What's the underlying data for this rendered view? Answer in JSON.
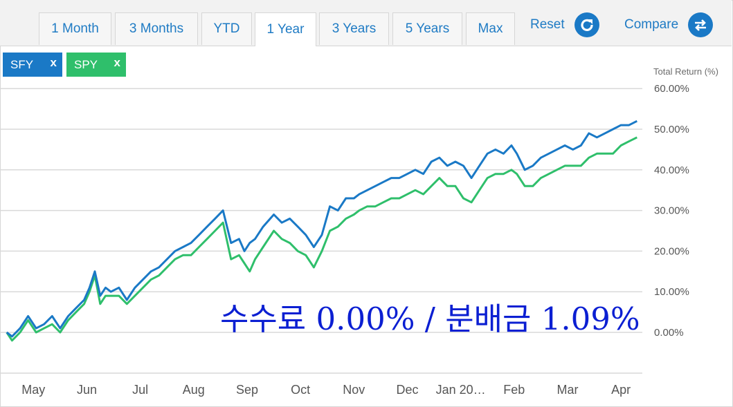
{
  "tabs": [
    {
      "label": "1 Month",
      "active": false
    },
    {
      "label": "3 Months",
      "active": false
    },
    {
      "label": "YTD",
      "active": false
    },
    {
      "label": "1 Year",
      "active": true
    },
    {
      "label": "3 Years",
      "active": false
    },
    {
      "label": "5 Years",
      "active": false
    },
    {
      "label": "Max",
      "active": false
    }
  ],
  "actions": {
    "reset_label": "Reset",
    "reset_icon": "refresh-icon",
    "compare_label": "Compare",
    "compare_icon": "swap-arrows-icon"
  },
  "chips": [
    {
      "label": "SFY",
      "close": "x",
      "color": "#1a79c6"
    },
    {
      "label": "SPY",
      "close": "x",
      "color": "#2fbf6b"
    }
  ],
  "overlay_text": "수수료 0.00% / 분배금 1.09%",
  "chart_data": {
    "type": "line",
    "title": "",
    "ylabel": "Total Return (%)",
    "ylim": [
      -10,
      60
    ],
    "ytick_values": [
      0,
      10,
      20,
      30,
      40,
      50,
      60
    ],
    "ytick_labels": [
      "0.00%",
      "10.00%",
      "20.00%",
      "30.00%",
      "40.00%",
      "50.00%",
      "60.00%"
    ],
    "xtick_labels": [
      "May",
      "Jun",
      "Jul",
      "Aug",
      "Sep",
      "Oct",
      "Nov",
      "Dec",
      "Jan 20…",
      "Feb",
      "Mar",
      "Apr"
    ],
    "xtick_positions": [
      0.5,
      1.5,
      2.5,
      3.5,
      4.5,
      5.5,
      6.5,
      7.5,
      8.5,
      9.5,
      10.5,
      11.5
    ],
    "xlim": [
      -0.1,
      11.9
    ],
    "grid": true,
    "series": [
      {
        "name": "SFY",
        "color": "#1a79c6",
        "x": [
          0,
          0.1,
          0.25,
          0.4,
          0.55,
          0.7,
          0.85,
          1.0,
          1.15,
          1.3,
          1.45,
          1.55,
          1.65,
          1.75,
          1.85,
          1.95,
          2.1,
          2.25,
          2.4,
          2.55,
          2.7,
          2.85,
          3.0,
          3.15,
          3.3,
          3.45,
          3.6,
          3.75,
          3.9,
          4.05,
          4.2,
          4.35,
          4.45,
          4.55,
          4.65,
          4.8,
          5.0,
          5.15,
          5.3,
          5.45,
          5.6,
          5.75,
          5.9,
          6.05,
          6.2,
          6.35,
          6.5,
          6.6,
          6.75,
          6.9,
          7.05,
          7.2,
          7.35,
          7.5,
          7.65,
          7.8,
          7.95,
          8.1,
          8.25,
          8.4,
          8.55,
          8.7,
          8.85,
          9.0,
          9.15,
          9.3,
          9.45,
          9.55,
          9.7,
          9.85,
          10.0,
          10.15,
          10.3,
          10.45,
          10.6,
          10.75,
          10.9,
          11.05,
          11.2,
          11.35,
          11.5,
          11.65,
          11.8
        ],
        "y": [
          0,
          -1,
          1,
          4,
          1,
          2,
          4,
          1,
          4,
          6,
          8,
          11,
          15,
          9,
          11,
          10,
          11,
          8,
          11,
          13,
          15,
          16,
          18,
          20,
          21,
          22,
          24,
          26,
          28,
          30,
          22,
          23,
          20,
          22,
          23,
          26,
          29,
          27,
          28,
          26,
          24,
          21,
          24,
          31,
          30,
          33,
          33,
          34,
          35,
          36,
          37,
          38,
          38,
          39,
          40,
          39,
          42,
          43,
          41,
          42,
          41,
          38,
          41,
          44,
          45,
          44,
          46,
          44,
          40,
          41,
          43,
          44,
          45,
          46,
          45,
          46,
          49,
          48,
          49,
          50,
          51,
          51,
          52
        ]
      },
      {
        "name": "SPY",
        "color": "#2fbf6b",
        "x": [
          0,
          0.1,
          0.25,
          0.4,
          0.55,
          0.7,
          0.85,
          1.0,
          1.15,
          1.3,
          1.45,
          1.55,
          1.65,
          1.75,
          1.85,
          1.95,
          2.1,
          2.25,
          2.4,
          2.55,
          2.7,
          2.85,
          3.0,
          3.15,
          3.3,
          3.45,
          3.6,
          3.75,
          3.9,
          4.05,
          4.2,
          4.35,
          4.45,
          4.55,
          4.65,
          4.8,
          5.0,
          5.15,
          5.3,
          5.45,
          5.6,
          5.75,
          5.9,
          6.05,
          6.2,
          6.35,
          6.5,
          6.6,
          6.75,
          6.9,
          7.05,
          7.2,
          7.35,
          7.5,
          7.65,
          7.8,
          7.95,
          8.1,
          8.25,
          8.4,
          8.55,
          8.7,
          8.85,
          9.0,
          9.15,
          9.3,
          9.45,
          9.55,
          9.7,
          9.85,
          10.0,
          10.15,
          10.3,
          10.45,
          10.6,
          10.75,
          10.9,
          11.05,
          11.2,
          11.35,
          11.5,
          11.65,
          11.8
        ],
        "y": [
          0,
          -2,
          0,
          3,
          0,
          1,
          2,
          0,
          3,
          5,
          7,
          10,
          14,
          7,
          9,
          9,
          9,
          7,
          9,
          11,
          13,
          14,
          16,
          18,
          19,
          19,
          21,
          23,
          25,
          27,
          18,
          19,
          17,
          15,
          18,
          21,
          25,
          23,
          22,
          20,
          19,
          16,
          20,
          25,
          26,
          28,
          29,
          30,
          31,
          31,
          32,
          33,
          33,
          34,
          35,
          34,
          36,
          38,
          36,
          36,
          33,
          32,
          35,
          38,
          39,
          39,
          40,
          39,
          36,
          36,
          38,
          39,
          40,
          41,
          41,
          41,
          43,
          44,
          44,
          44,
          46,
          47,
          48
        ]
      }
    ]
  }
}
